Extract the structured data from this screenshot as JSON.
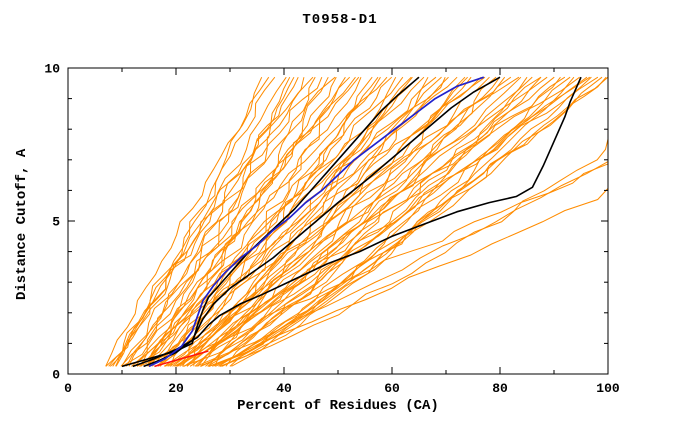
{
  "page": {
    "background": "#ffffff"
  },
  "chart_data": {
    "type": "line",
    "title": "T0958-D1",
    "xlabel": "Percent of Residues (CA)",
    "ylabel": "Distance Cutoff, A",
    "xlim": [
      0,
      100
    ],
    "ylim": [
      0,
      10
    ],
    "x_ticks_major": [
      0,
      20,
      40,
      60,
      80,
      100
    ],
    "x_ticks_minor": [
      10,
      30,
      50,
      70,
      90
    ],
    "y_ticks_major": [
      0,
      5,
      10
    ],
    "y_ticks_minor": [
      1,
      2,
      3,
      4,
      6,
      7,
      8,
      9
    ],
    "grid": false,
    "legend": "none",
    "colors": {
      "ensemble": "#ff8c00",
      "model_black": "#000000",
      "model_blue": "#2222cc",
      "model_red": "#ff1010",
      "axis": "#000000"
    },
    "highlight_series": [
      {
        "name": "black-model-1",
        "color_key": "model_black",
        "width": 1.6,
        "points": [
          [
            10,
            0.25
          ],
          [
            13,
            0.4
          ],
          [
            16,
            0.55
          ],
          [
            20,
            0.75
          ],
          [
            23,
            1.0
          ],
          [
            24,
            1.6
          ],
          [
            25,
            2.1
          ],
          [
            26,
            2.5
          ],
          [
            28,
            2.9
          ],
          [
            30,
            3.3
          ],
          [
            33,
            3.9
          ],
          [
            36,
            4.4
          ],
          [
            39,
            4.9
          ],
          [
            42,
            5.4
          ],
          [
            45,
            6.0
          ],
          [
            48,
            6.6
          ],
          [
            50,
            7.0
          ],
          [
            52,
            7.4
          ],
          [
            54,
            7.8
          ],
          [
            56,
            8.2
          ],
          [
            58,
            8.6
          ],
          [
            61,
            9.1
          ],
          [
            63,
            9.4
          ],
          [
            65,
            9.7
          ]
        ]
      },
      {
        "name": "black-model-2",
        "color_key": "model_black",
        "width": 1.6,
        "points": [
          [
            14,
            0.25
          ],
          [
            17,
            0.45
          ],
          [
            20,
            0.7
          ],
          [
            23,
            1.1
          ],
          [
            25,
            1.8
          ],
          [
            27,
            2.3
          ],
          [
            30,
            2.8
          ],
          [
            34,
            3.3
          ],
          [
            38,
            3.8
          ],
          [
            42,
            4.4
          ],
          [
            46,
            5.0
          ],
          [
            50,
            5.6
          ],
          [
            55,
            6.3
          ],
          [
            59,
            6.9
          ],
          [
            63,
            7.5
          ],
          [
            67,
            8.1
          ],
          [
            71,
            8.7
          ],
          [
            75,
            9.2
          ],
          [
            78,
            9.5
          ],
          [
            80,
            9.7
          ]
        ]
      },
      {
        "name": "black-model-3",
        "color_key": "model_black",
        "width": 1.6,
        "points": [
          [
            12,
            0.25
          ],
          [
            16,
            0.5
          ],
          [
            20,
            0.8
          ],
          [
            24,
            1.2
          ],
          [
            26,
            1.6
          ],
          [
            28,
            1.9
          ],
          [
            32,
            2.3
          ],
          [
            36,
            2.6
          ],
          [
            42,
            3.1
          ],
          [
            48,
            3.6
          ],
          [
            54,
            4.0
          ],
          [
            60,
            4.5
          ],
          [
            66,
            4.9
          ],
          [
            72,
            5.3
          ],
          [
            78,
            5.6
          ],
          [
            83,
            5.8
          ],
          [
            86,
            6.1
          ],
          [
            88,
            6.8
          ],
          [
            90,
            7.6
          ],
          [
            92,
            8.4
          ],
          [
            93,
            8.9
          ],
          [
            94,
            9.3
          ],
          [
            95,
            9.7
          ]
        ]
      },
      {
        "name": "blue-model",
        "color_key": "model_blue",
        "width": 1.7,
        "points": [
          [
            15,
            0.25
          ],
          [
            18,
            0.5
          ],
          [
            21,
            0.9
          ],
          [
            23,
            1.4
          ],
          [
            24,
            1.9
          ],
          [
            25,
            2.4
          ],
          [
            27,
            2.9
          ],
          [
            29,
            3.3
          ],
          [
            32,
            3.8
          ],
          [
            35,
            4.2
          ],
          [
            38,
            4.7
          ],
          [
            41,
            5.1
          ],
          [
            44,
            5.6
          ],
          [
            47,
            6.0
          ],
          [
            50,
            6.5
          ],
          [
            53,
            7.0
          ],
          [
            56,
            7.4
          ],
          [
            59,
            7.8
          ],
          [
            62,
            8.2
          ],
          [
            65,
            8.6
          ],
          [
            68,
            9.0
          ],
          [
            72,
            9.4
          ],
          [
            77,
            9.7
          ]
        ]
      },
      {
        "name": "red-model",
        "color_key": "model_red",
        "width": 1.5,
        "points": [
          [
            16,
            0.25
          ],
          [
            18,
            0.35
          ],
          [
            20,
            0.45
          ],
          [
            22,
            0.55
          ],
          [
            24,
            0.65
          ],
          [
            26,
            0.75
          ]
        ]
      }
    ],
    "ensemble_series": {
      "color_key": "ensemble",
      "width": 1,
      "y_start": 0.25,
      "y_end": 9.7,
      "curves_x0_x1_shape": [
        [
          7,
          36,
          0.8
        ],
        [
          8,
          40,
          0.9
        ],
        [
          9,
          38,
          1.0
        ],
        [
          10,
          44,
          0.85
        ],
        [
          8,
          47,
          1.1
        ],
        [
          11,
          42,
          0.95
        ],
        [
          12,
          50,
          0.9
        ],
        [
          10,
          53,
          1.05
        ],
        [
          13,
          48,
          0.8
        ],
        [
          14,
          55,
          1.0
        ],
        [
          12,
          58,
          0.9
        ],
        [
          15,
          52,
          1.1
        ],
        [
          13,
          60,
          0.95
        ],
        [
          16,
          57,
          0.85
        ],
        [
          14,
          62,
          1.0
        ],
        [
          17,
          64,
          0.9
        ],
        [
          15,
          66,
          1.05
        ],
        [
          18,
          63,
          0.8
        ],
        [
          16,
          68,
          1.0
        ],
        [
          19,
          70,
          0.9
        ],
        [
          17,
          72,
          1.1
        ],
        [
          20,
          69,
          0.95
        ],
        [
          18,
          74,
          0.85
        ],
        [
          21,
          76,
          1.0
        ],
        [
          19,
          78,
          0.9
        ],
        [
          22,
          75,
          1.05
        ],
        [
          20,
          80,
          0.8
        ],
        [
          23,
          82,
          1.0
        ],
        [
          21,
          84,
          0.9
        ],
        [
          24,
          81,
          1.1
        ],
        [
          22,
          86,
          0.95
        ],
        [
          25,
          88,
          0.85
        ],
        [
          23,
          90,
          1.0
        ],
        [
          26,
          87,
          0.9
        ],
        [
          24,
          92,
          1.05
        ],
        [
          27,
          94,
          0.8
        ],
        [
          25,
          96,
          1.0
        ],
        [
          28,
          93,
          0.9
        ],
        [
          26,
          98,
          1.1
        ],
        [
          29,
          100,
          0.95
        ],
        [
          27,
          97,
          0.85
        ],
        [
          30,
          100,
          1.0
        ],
        [
          9,
          45,
          1.2
        ],
        [
          11,
          49,
          1.15
        ],
        [
          13,
          54,
          1.2
        ],
        [
          15,
          59,
          1.25
        ],
        [
          17,
          65,
          1.2
        ],
        [
          19,
          71,
          1.3
        ],
        [
          21,
          77,
          1.25
        ],
        [
          23,
          83,
          1.3
        ],
        [
          25,
          89,
          1.25
        ],
        [
          27,
          95,
          1.3
        ],
        [
          10,
          41,
          0.7
        ],
        [
          12,
          46,
          0.75
        ],
        [
          14,
          51,
          0.7
        ],
        [
          16,
          56,
          0.75
        ],
        [
          18,
          61,
          0.7
        ],
        [
          20,
          67,
          0.75
        ],
        [
          22,
          73,
          0.7
        ],
        [
          24,
          79,
          0.75
        ],
        [
          26,
          85,
          0.7
        ],
        [
          28,
          91,
          0.75
        ],
        [
          8,
          43,
          1.0
        ],
        [
          30,
          99,
          0.9
        ],
        [
          29,
          96,
          1.1
        ],
        [
          7,
          37,
          1.05
        ],
        [
          24,
          130,
          0.95
        ],
        [
          26,
          150,
          1.0
        ],
        [
          28,
          120,
          0.85
        ],
        [
          20,
          140,
          1.1
        ]
      ]
    }
  }
}
